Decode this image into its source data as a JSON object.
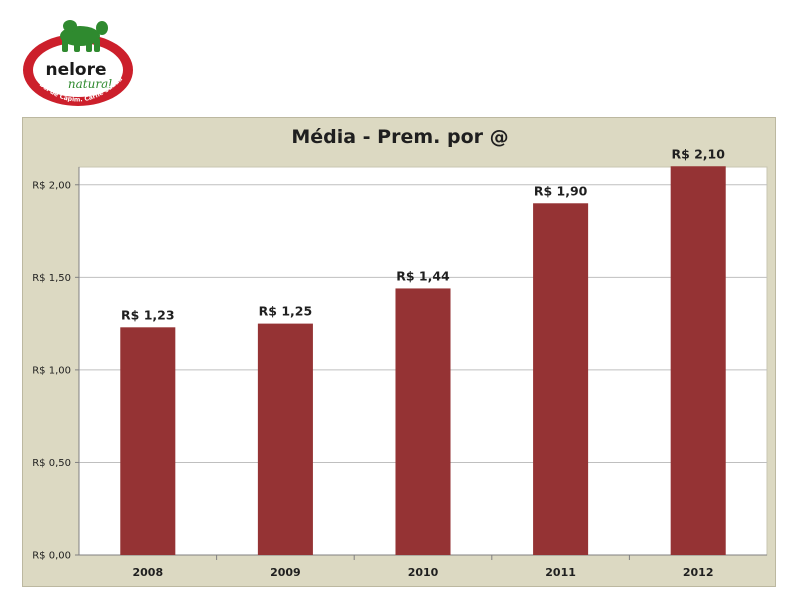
{
  "brand": {
    "name": "nelore",
    "subname": "natural",
    "tagline": "Boi de Capim. Carne Saudável.",
    "colors": {
      "ring": "#cc1f2b",
      "bull": "#2f8a2f",
      "text": "#1a1a1a"
    }
  },
  "chart_data": {
    "type": "bar",
    "title": "Média - Prem. por @",
    "xlabel": "",
    "ylabel": "",
    "categories": [
      "2008",
      "2009",
      "2010",
      "2011",
      "2012"
    ],
    "values": [
      1.23,
      1.25,
      1.44,
      1.9,
      2.1
    ],
    "data_labels": [
      "R$ 1,23",
      "R$ 1,25",
      "R$ 1,44",
      "R$ 1,90",
      "R$ 2,10"
    ],
    "ylim": [
      0,
      2.0
    ],
    "yticks": [
      0,
      0.5,
      1.0,
      1.5,
      2.0
    ],
    "ytick_labels": [
      "R$ 0,00",
      "R$ 0,50",
      "R$ 1,00",
      "R$ 1,50",
      "R$ 2,00"
    ],
    "grid": true,
    "legend": "none",
    "bar_color": "#953334",
    "plot_background": "#ffffff",
    "frame_background": "#dcd9c2"
  }
}
